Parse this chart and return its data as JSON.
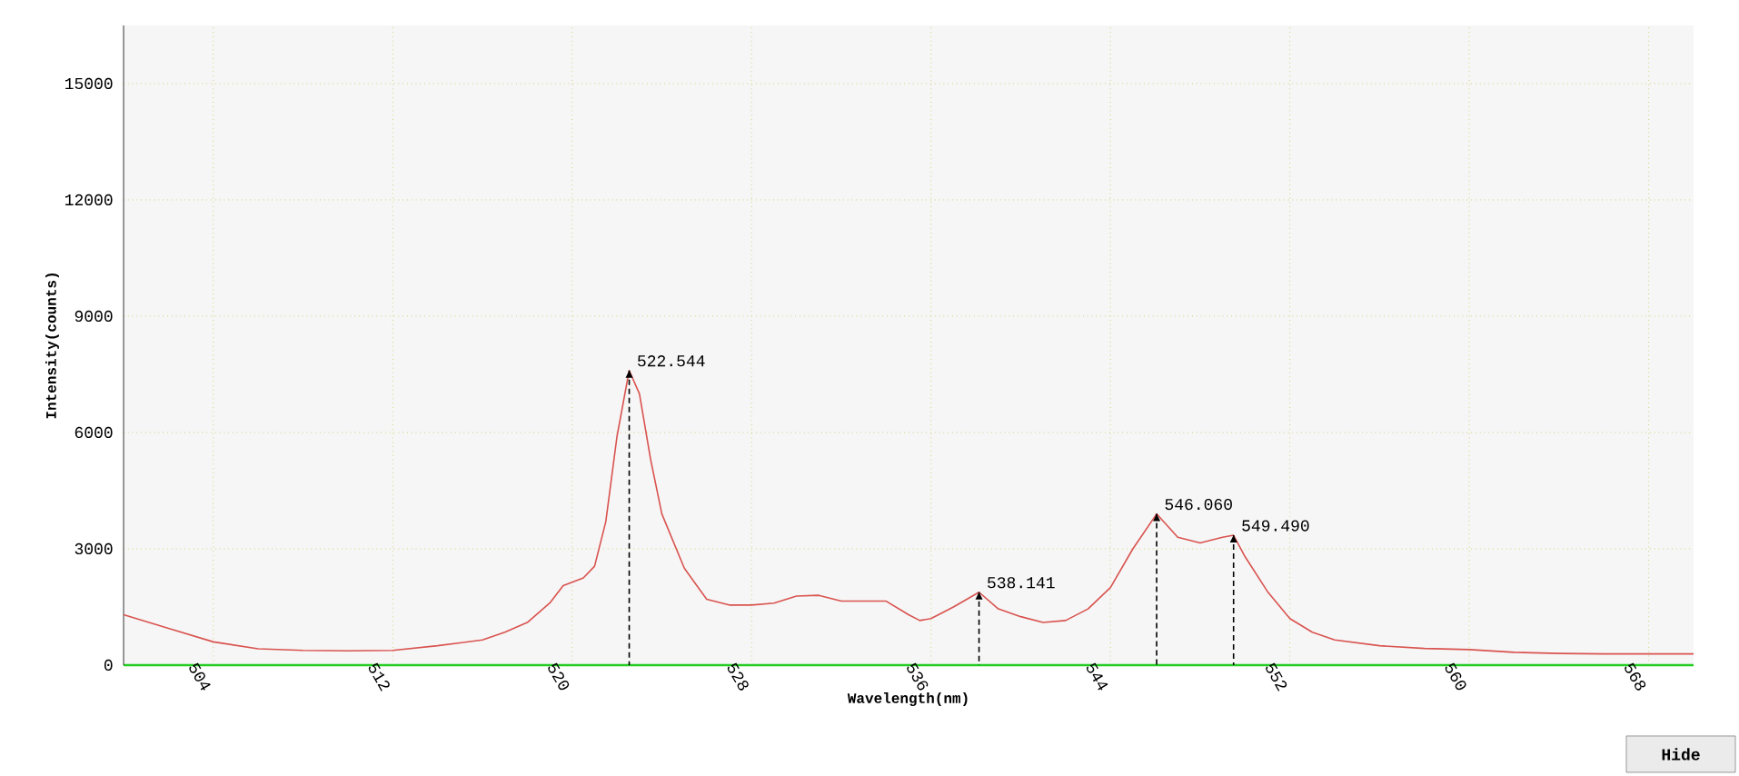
{
  "chart_data": {
    "type": "line",
    "xlabel": "Wavelength(nm)",
    "ylabel": "Intensity(counts)",
    "x": [
      500,
      502,
      504,
      506,
      508,
      510,
      512,
      514,
      516,
      517,
      518,
      519,
      519.6,
      520.5,
      521,
      521.5,
      522,
      522.544,
      523,
      523.5,
      524,
      525,
      526,
      527,
      528,
      529,
      530,
      531,
      532,
      534,
      535,
      535.5,
      536,
      537,
      538.141,
      539,
      540,
      541,
      542,
      543,
      544,
      545,
      546.06,
      547,
      548,
      549,
      549.49,
      550,
      551,
      552,
      553,
      554,
      556,
      558,
      560,
      562,
      564,
      566,
      568,
      570
    ],
    "series": [
      {
        "color": "#d9534f",
        "values": [
          1300,
          950,
          600,
          420,
          380,
          370,
          380,
          500,
          650,
          850,
          1100,
          1600,
          2050,
          2250,
          2550,
          3700,
          5900,
          7600,
          7000,
          5300,
          3900,
          2500,
          1700,
          1550,
          1550,
          1600,
          1780,
          1800,
          1650,
          1650,
          1300,
          1150,
          1200,
          1500,
          1880,
          1450,
          1250,
          1100,
          1150,
          1450,
          2000,
          3000,
          3900,
          3300,
          3150,
          3300,
          3350,
          2800,
          1900,
          1200,
          850,
          650,
          500,
          430,
          400,
          330,
          300,
          290,
          290,
          290
        ]
      }
    ],
    "xlim": [
      500,
      570
    ],
    "ylim": [
      0,
      16500
    ],
    "xticks": [
      504,
      512,
      520,
      528,
      536,
      544,
      552,
      560,
      568
    ],
    "yticks": [
      0,
      3000,
      6000,
      9000,
      12000,
      15000
    ],
    "grid": true,
    "marker": "none",
    "line_style": "solid",
    "annotations": [
      {
        "text": "522.544",
        "x": 522.544,
        "y": 7600
      },
      {
        "text": "538.141",
        "x": 538.141,
        "y": 1880
      },
      {
        "text": "546.060",
        "x": 546.06,
        "y": 3900
      },
      {
        "text": "549.490",
        "x": 549.49,
        "y": 3350
      },
      "Hide"
    ]
  }
}
